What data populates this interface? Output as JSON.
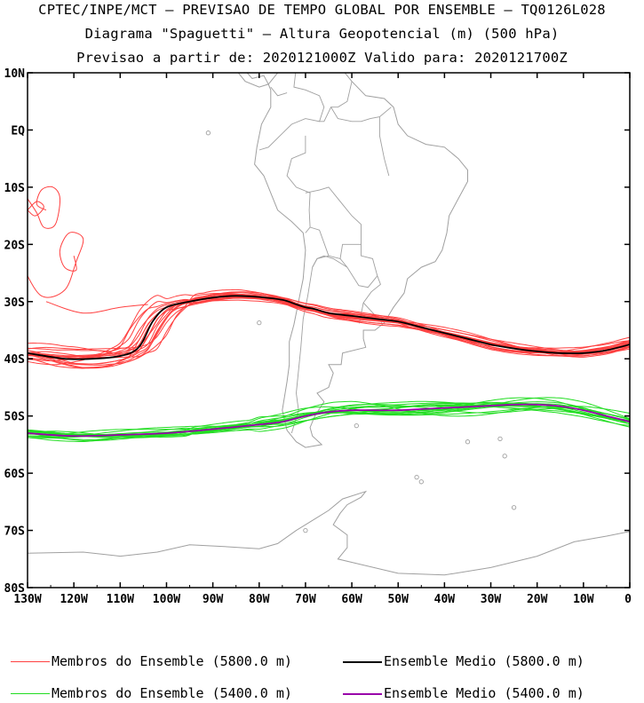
{
  "title": {
    "line1": "CPTEC/INPE/MCT – PREVISAO DE TEMPO GLOBAL POR ENSEMBLE – TQ0126L028",
    "line2": "Diagrama \"Spaguetti\" – Altura Geopotencial (m) (500 hPa)",
    "line3": "Previsao a partir de: 2020121000Z  Valido para: 2020121700Z"
  },
  "axes": {
    "lat_labels": [
      "10N",
      "EQ",
      "10S",
      "20S",
      "30S",
      "40S",
      "50S",
      "60S",
      "70S",
      "80S"
    ],
    "lon_labels": [
      "130W",
      "120W",
      "110W",
      "100W",
      "90W",
      "80W",
      "70W",
      "60W",
      "50W",
      "40W",
      "30W",
      "20W",
      "10W",
      "0"
    ]
  },
  "legend": {
    "members_5800": "Membros do Ensemble (5800.0 m)",
    "mean_5800": "Ensemble Medio (5800.0 m)",
    "members_5400": "Membros do Ensemble (5400.0 m)",
    "mean_5400": "Ensemble Medio (5400.0 m)"
  },
  "colors": {
    "members_5800": "#ff4040",
    "mean_5800": "#000000",
    "members_5400": "#22dd22",
    "mean_5400": "#9900aa",
    "coastline": "#a0a0a0"
  },
  "chart_data": {
    "type": "line",
    "projection": "lat-lon",
    "xlim": [
      -130,
      0
    ],
    "ylim": [
      -80,
      10
    ],
    "series": [
      {
        "name": "Ensemble Medio (5800.0 m)",
        "x": [
          -130,
          -122,
          -116,
          -110,
          -106,
          -103,
          -100,
          -95,
          -90,
          -85,
          -80,
          -75,
          -72,
          -70,
          -68,
          -65,
          -60,
          -55,
          -50,
          -45,
          -40,
          -35,
          -30,
          -25,
          -20,
          -15,
          -10,
          -5,
          0
        ],
        "y": [
          -39,
          -40,
          -40,
          -39.5,
          -38,
          -33.5,
          -31,
          -30,
          -29.3,
          -29,
          -29.2,
          -29.7,
          -30.5,
          -31,
          -31.3,
          -32,
          -32.5,
          -33,
          -33.5,
          -34.5,
          -35.5,
          -36.5,
          -37.5,
          -38.2,
          -38.7,
          -39,
          -39,
          -38.5,
          -37.5
        ]
      },
      {
        "name": "Ensemble Medio (5400.0 m)",
        "x": [
          -130,
          -120,
          -110,
          -100,
          -90,
          -80,
          -75,
          -70,
          -65,
          -60,
          -55,
          -50,
          -45,
          -40,
          -35,
          -30,
          -25,
          -20,
          -15,
          -10,
          -5,
          0
        ],
        "y": [
          -53,
          -53.5,
          -53.3,
          -53,
          -52.3,
          -51.5,
          -51,
          -50,
          -49.3,
          -49,
          -49,
          -49,
          -48.8,
          -48.6,
          -48.4,
          -48.2,
          -48,
          -48,
          -48.3,
          -49,
          -50,
          -51
        ]
      }
    ]
  }
}
